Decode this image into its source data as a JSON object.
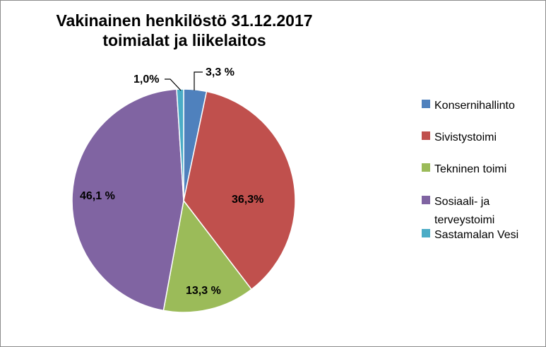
{
  "chart_data": {
    "type": "pie",
    "title_lines": [
      "Vakinainen henkilöstö 31.12.2017",
      "toimialat ja liikelaitos"
    ],
    "start_angle_deg": 0,
    "slices": [
      {
        "name": "Konsernihallinto",
        "value": 3.3,
        "label": "3,3 %",
        "color": "#4f81bd"
      },
      {
        "name": "Sivistystoimi",
        "value": 36.3,
        "label": "36,3%",
        "color": "#c0504d"
      },
      {
        "name": "Tekninen toimi",
        "value": 13.3,
        "label": "13,3 %",
        "color": "#9bbb59"
      },
      {
        "name": "Sosiaali- ja terveystoimi",
        "value": 46.1,
        "label": "46,1 %",
        "color": "#8064a2"
      },
      {
        "name": "Sastamalan Vesi",
        "value": 1.0,
        "label": "1,0%",
        "color": "#4bacc6"
      }
    ],
    "legend": {
      "placement": "right",
      "items": [
        {
          "label": "Konsernihallinto",
          "color": "#4f81bd"
        },
        {
          "label": "Sivistystoimi",
          "color": "#c0504d"
        },
        {
          "label": "Tekninen toimi",
          "color": "#9bbb59"
        },
        {
          "label": "Sosiaali- ja terveystoimi",
          "color": "#8064a2"
        },
        {
          "label": "Sastamalan Vesi",
          "color": "#4bacc6"
        }
      ]
    }
  }
}
